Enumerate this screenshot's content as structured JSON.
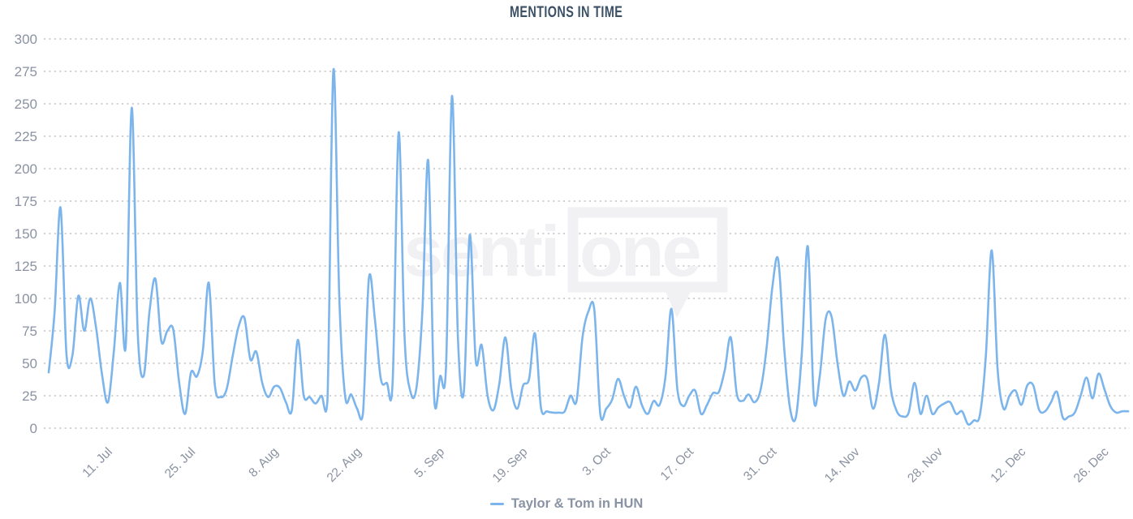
{
  "title": "MENTIONS IN TIME",
  "legend": {
    "series_label": "Taylor & Tom in HUN"
  },
  "watermark": {
    "text_left": "senti",
    "text_boxed": "one"
  },
  "colors": {
    "line": "#7cb5ec",
    "grid": "#c9c9c9",
    "axis_label": "#8a92a1",
    "title": "#3c5065",
    "legend_text": "#8a93a4",
    "watermark": "#f1f1f4",
    "background": "#ffffff"
  },
  "chart_data": {
    "type": "line",
    "style": "smooth spline, no markers",
    "title": "MENTIONS IN TIME",
    "xlabel": "",
    "ylabel": "",
    "ylim": [
      0,
      300
    ],
    "y_ticks": [
      0,
      25,
      50,
      75,
      100,
      125,
      150,
      175,
      200,
      225,
      250,
      275,
      300
    ],
    "grid": "dotted horizontal only",
    "legend_position": "bottom-center",
    "x": {
      "start": "1. Jul",
      "end": "30. Dec",
      "step_days": 1,
      "count": 183
    },
    "x_tick_labels": [
      "11. Jul",
      "25. Jul",
      "8. Aug",
      "22. Aug",
      "5. Sep",
      "19. Sep",
      "3. Oct",
      "17. Oct",
      "31. Oct",
      "14. Nov",
      "28. Nov",
      "12. Dec",
      "26. Dec"
    ],
    "x_tick_day_indices": [
      10,
      24,
      38,
      52,
      66,
      80,
      94,
      108,
      122,
      136,
      150,
      164,
      178
    ],
    "x_tick_rotation_deg": -45,
    "series": [
      {
        "name": "Taylor & Tom in HUN",
        "color": "#7cb5ec",
        "values": [
          43,
          90,
          170,
          57,
          56,
          102,
          75,
          100,
          77,
          41,
          20,
          60,
          112,
          64,
          247,
          75,
          40,
          90,
          115,
          67,
          75,
          76,
          35,
          11,
          43,
          40,
          60,
          112,
          34,
          24,
          30,
          55,
          78,
          85,
          53,
          59,
          35,
          24,
          32,
          31,
          20,
          14,
          68,
          25,
          24,
          19,
          25,
          22,
          276,
          100,
          24,
          26,
          15,
          12,
          116,
          84,
          38,
          35,
          36,
          228,
          70,
          28,
          31,
          90,
          206,
          23,
          40,
          48,
          256,
          70,
          28,
          149,
          52,
          64,
          25,
          14,
          35,
          70,
          30,
          15,
          33,
          38,
          73,
          16,
          13,
          12,
          12,
          13,
          25,
          21,
          70,
          90,
          91,
          11,
          15,
          22,
          38,
          25,
          16,
          32,
          18,
          11,
          21,
          18,
          40,
          92,
          30,
          17,
          25,
          29,
          11,
          18,
          27,
          28,
          45,
          70,
          27,
          21,
          26,
          20,
          29,
          60,
          108,
          130,
          62,
          15,
          9,
          59,
          140,
          23,
          40,
          84,
          86,
          50,
          25,
          36,
          29,
          39,
          38,
          15,
          35,
          72,
          30,
          13,
          9,
          12,
          35,
          11,
          25,
          11,
          16,
          19,
          20,
          11,
          13,
          3,
          6,
          10,
          55,
          137,
          45,
          15,
          25,
          29,
          18,
          33,
          33,
          14,
          13,
          20,
          28,
          8,
          9,
          12,
          25,
          39,
          23,
          42,
          30,
          17,
          12,
          13,
          13
        ]
      }
    ]
  }
}
